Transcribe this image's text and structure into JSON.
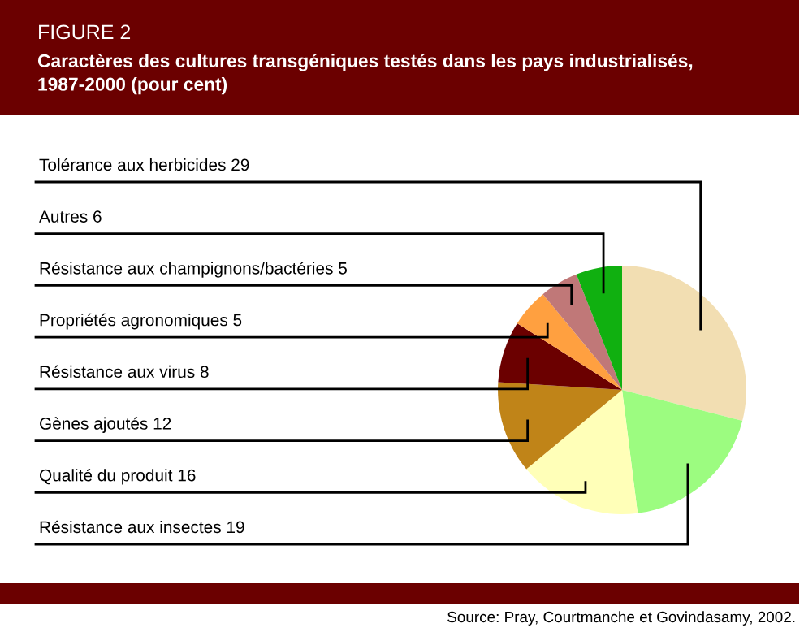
{
  "chart_data": {
    "type": "pie",
    "title": "FIGURE 2",
    "subtitle": "Caractères des cultures transgéniques testés dans les pays industrialisés,\n1987-2000 (pour cent)",
    "categories": [
      "Tolérance aux herbicides 29",
      "Résistance aux insectes 19",
      "Qualité du produit 16",
      "Gènes ajoutés 12",
      "Résistance aux virus 8",
      "Propriétés agronomiques 5",
      "Résistance aux champignons/bactéries 5",
      "Autres 6"
    ],
    "values": [
      29,
      19,
      16,
      12,
      8,
      5,
      5,
      6
    ],
    "colors": [
      "#f2deb2",
      "#9cfc80",
      "#ffffb8",
      "#c08418",
      "#6b0000",
      "#ffa040",
      "#c07878",
      "#10b010"
    ],
    "annotations": [
      "Source: Pray, Courtmanche et Govindasamy, 2002."
    ]
  }
}
